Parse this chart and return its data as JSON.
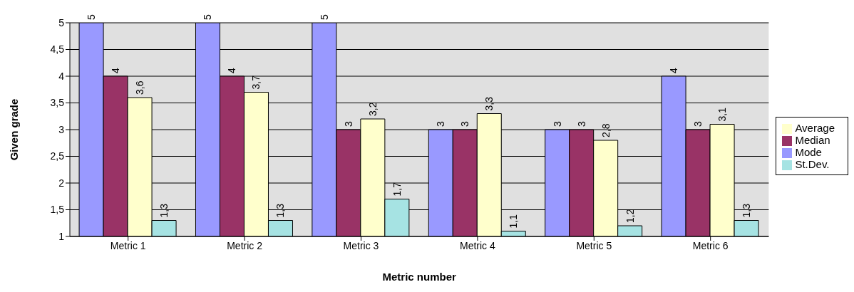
{
  "chart_data": {
    "type": "bar",
    "xlabel": "Metric number",
    "ylabel": "Given grade",
    "categories": [
      "Metric 1",
      "Metric 2",
      "Metric 3",
      "Metric 4",
      "Metric 5",
      "Metric 6"
    ],
    "series": [
      {
        "name": "Mode",
        "color": "#9999ff",
        "values": [
          5,
          5,
          5,
          3,
          3,
          4
        ],
        "value_labels": [
          "5",
          "5",
          "5",
          "3",
          "3",
          "4"
        ]
      },
      {
        "name": "Median",
        "color": "#993366",
        "values": [
          4,
          4,
          3,
          3,
          3,
          3
        ],
        "value_labels": [
          "4",
          "4",
          "3",
          "3",
          "3",
          "3"
        ]
      },
      {
        "name": "Average",
        "color": "#ffffcc",
        "values": [
          3.6,
          3.7,
          3.2,
          3.3,
          2.8,
          3.1
        ],
        "value_labels": [
          "3,6",
          "3,7",
          "3,2",
          "3,3",
          "2,8",
          "3,1"
        ]
      },
      {
        "name": "St.Dev.",
        "color": "#a6e3e3",
        "values": [
          1.3,
          1.3,
          1.7,
          1.1,
          1.2,
          1.3
        ],
        "value_labels": [
          "1,3",
          "1,3",
          "1,7",
          "1,1",
          "1,2",
          "1,3"
        ]
      }
    ],
    "ylim": [
      1,
      5
    ],
    "yticks": [
      1,
      {
        "value": 1.5,
        "label": "1,5"
      },
      2,
      {
        "value": 2.5,
        "label": "2,5"
      },
      3,
      {
        "value": 3.5,
        "label": "3,5"
      },
      4,
      {
        "value": 4.5,
        "label": "4,5"
      },
      5
    ],
    "grid": "y",
    "legend": "right"
  }
}
